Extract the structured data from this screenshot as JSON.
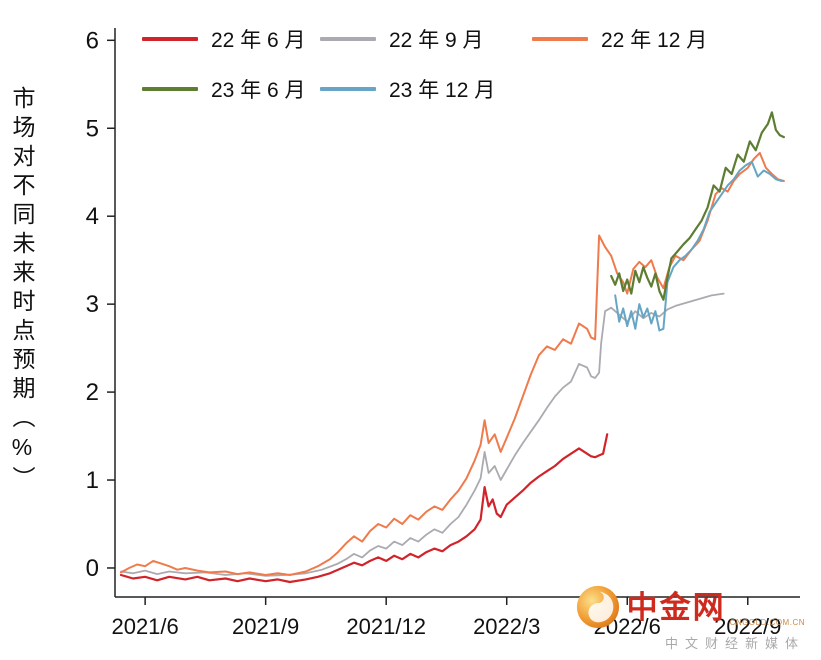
{
  "page": {
    "background": "#ffffff"
  },
  "chart_data": {
    "type": "line",
    "title": "",
    "xlabel": "",
    "ylabel": "市场对不同未来时点预期（%）",
    "grid": false,
    "legend_position": "top-left",
    "axis_color": "#222222",
    "tick_label_color": "#111111",
    "ylim": [
      -0.33,
      6.14
    ],
    "xlim": [
      -0.75,
      16.3
    ],
    "yticks": [
      0,
      1,
      2,
      3,
      4,
      5,
      6
    ],
    "xticks": [
      {
        "pos": 0,
        "label": "2021/6"
      },
      {
        "pos": 3,
        "label": "2021/9"
      },
      {
        "pos": 6,
        "label": "2021/12"
      },
      {
        "pos": 9,
        "label": "2022/3"
      },
      {
        "pos": 12,
        "label": "2022/6"
      },
      {
        "pos": 15,
        "label": "2022/9"
      }
    ],
    "x_unit": "months since 2021/6",
    "draw_order": [
      1,
      0,
      2,
      4,
      3
    ],
    "series": [
      {
        "name": "22 年 6 月",
        "color": "#d1232a",
        "width": 2.2,
        "points": [
          [
            -0.6,
            -0.08
          ],
          [
            -0.3,
            -0.12
          ],
          [
            0,
            -0.1
          ],
          [
            0.3,
            -0.14
          ],
          [
            0.6,
            -0.1
          ],
          [
            1,
            -0.13
          ],
          [
            1.3,
            -0.1
          ],
          [
            1.6,
            -0.14
          ],
          [
            2,
            -0.12
          ],
          [
            2.3,
            -0.15
          ],
          [
            2.6,
            -0.12
          ],
          [
            3,
            -0.15
          ],
          [
            3.3,
            -0.13
          ],
          [
            3.6,
            -0.16
          ],
          [
            4,
            -0.13
          ],
          [
            4.3,
            -0.1
          ],
          [
            4.6,
            -0.06
          ],
          [
            4.8,
            -0.02
          ],
          [
            5,
            0.02
          ],
          [
            5.2,
            0.06
          ],
          [
            5.4,
            0.03
          ],
          [
            5.6,
            0.08
          ],
          [
            5.8,
            0.12
          ],
          [
            6,
            0.08
          ],
          [
            6.2,
            0.14
          ],
          [
            6.4,
            0.1
          ],
          [
            6.6,
            0.16
          ],
          [
            6.8,
            0.12
          ],
          [
            7,
            0.18
          ],
          [
            7.2,
            0.22
          ],
          [
            7.4,
            0.19
          ],
          [
            7.6,
            0.26
          ],
          [
            7.8,
            0.3
          ],
          [
            8,
            0.36
          ],
          [
            8.2,
            0.44
          ],
          [
            8.35,
            0.55
          ],
          [
            8.45,
            0.92
          ],
          [
            8.55,
            0.7
          ],
          [
            8.65,
            0.78
          ],
          [
            8.75,
            0.62
          ],
          [
            8.85,
            0.58
          ],
          [
            9,
            0.72
          ],
          [
            9.2,
            0.8
          ],
          [
            9.4,
            0.88
          ],
          [
            9.6,
            0.97
          ],
          [
            9.8,
            1.04
          ],
          [
            10,
            1.1
          ],
          [
            10.2,
            1.16
          ],
          [
            10.4,
            1.24
          ],
          [
            10.6,
            1.3
          ],
          [
            10.8,
            1.36
          ],
          [
            11,
            1.3
          ],
          [
            11.1,
            1.27
          ],
          [
            11.2,
            1.26
          ],
          [
            11.3,
            1.28
          ],
          [
            11.4,
            1.3
          ],
          [
            11.5,
            1.52
          ]
        ]
      },
      {
        "name": "22 年 9 月",
        "color": "#abaab0",
        "width": 1.8,
        "points": [
          [
            -0.6,
            -0.04
          ],
          [
            -0.3,
            -0.06
          ],
          [
            0,
            -0.03
          ],
          [
            0.3,
            -0.07
          ],
          [
            0.6,
            -0.04
          ],
          [
            1,
            -0.06
          ],
          [
            1.5,
            -0.05
          ],
          [
            2,
            -0.08
          ],
          [
            2.5,
            -0.06
          ],
          [
            3,
            -0.09
          ],
          [
            3.5,
            -0.08
          ],
          [
            4,
            -0.06
          ],
          [
            4.4,
            -0.02
          ],
          [
            4.8,
            0.05
          ],
          [
            5,
            0.1
          ],
          [
            5.2,
            0.16
          ],
          [
            5.4,
            0.12
          ],
          [
            5.6,
            0.2
          ],
          [
            5.8,
            0.25
          ],
          [
            6,
            0.22
          ],
          [
            6.2,
            0.3
          ],
          [
            6.4,
            0.26
          ],
          [
            6.6,
            0.34
          ],
          [
            6.8,
            0.3
          ],
          [
            7,
            0.38
          ],
          [
            7.2,
            0.44
          ],
          [
            7.4,
            0.4
          ],
          [
            7.6,
            0.5
          ],
          [
            7.8,
            0.58
          ],
          [
            8,
            0.72
          ],
          [
            8.2,
            0.88
          ],
          [
            8.35,
            1.02
          ],
          [
            8.45,
            1.32
          ],
          [
            8.55,
            1.08
          ],
          [
            8.7,
            1.16
          ],
          [
            8.85,
            1.0
          ],
          [
            9,
            1.12
          ],
          [
            9.2,
            1.28
          ],
          [
            9.4,
            1.42
          ],
          [
            9.6,
            1.55
          ],
          [
            9.8,
            1.68
          ],
          [
            10,
            1.82
          ],
          [
            10.2,
            1.95
          ],
          [
            10.4,
            2.05
          ],
          [
            10.6,
            2.12
          ],
          [
            10.8,
            2.32
          ],
          [
            11,
            2.28
          ],
          [
            11.1,
            2.18
          ],
          [
            11.2,
            2.16
          ],
          [
            11.3,
            2.22
          ],
          [
            11.35,
            2.55
          ],
          [
            11.45,
            2.92
          ],
          [
            11.6,
            2.96
          ],
          [
            11.8,
            2.88
          ],
          [
            12,
            2.8
          ],
          [
            12.2,
            2.92
          ],
          [
            12.4,
            2.84
          ],
          [
            12.6,
            2.9
          ],
          [
            12.8,
            2.86
          ],
          [
            13,
            2.94
          ],
          [
            13.2,
            2.98
          ],
          [
            13.5,
            3.02
          ],
          [
            13.8,
            3.06
          ],
          [
            14.1,
            3.1
          ],
          [
            14.4,
            3.12
          ]
        ]
      },
      {
        "name": "22 年 12 月",
        "color": "#ef7b4d",
        "width": 2,
        "points": [
          [
            -0.6,
            -0.05
          ],
          [
            -0.4,
            0.0
          ],
          [
            -0.2,
            0.04
          ],
          [
            0,
            0.02
          ],
          [
            0.2,
            0.08
          ],
          [
            0.4,
            0.05
          ],
          [
            0.6,
            0.02
          ],
          [
            0.8,
            -0.02
          ],
          [
            1,
            0.0
          ],
          [
            1.3,
            -0.03
          ],
          [
            1.6,
            -0.05
          ],
          [
            2,
            -0.04
          ],
          [
            2.3,
            -0.07
          ],
          [
            2.6,
            -0.05
          ],
          [
            3,
            -0.08
          ],
          [
            3.3,
            -0.06
          ],
          [
            3.6,
            -0.08
          ],
          [
            4,
            -0.04
          ],
          [
            4.3,
            0.02
          ],
          [
            4.6,
            0.1
          ],
          [
            4.8,
            0.18
          ],
          [
            5,
            0.28
          ],
          [
            5.2,
            0.36
          ],
          [
            5.4,
            0.3
          ],
          [
            5.6,
            0.42
          ],
          [
            5.8,
            0.5
          ],
          [
            6,
            0.46
          ],
          [
            6.2,
            0.56
          ],
          [
            6.4,
            0.5
          ],
          [
            6.6,
            0.6
          ],
          [
            6.8,
            0.55
          ],
          [
            7,
            0.64
          ],
          [
            7.2,
            0.7
          ],
          [
            7.4,
            0.66
          ],
          [
            7.6,
            0.78
          ],
          [
            7.8,
            0.88
          ],
          [
            8,
            1.02
          ],
          [
            8.2,
            1.22
          ],
          [
            8.35,
            1.4
          ],
          [
            8.45,
            1.68
          ],
          [
            8.55,
            1.42
          ],
          [
            8.7,
            1.52
          ],
          [
            8.85,
            1.32
          ],
          [
            9,
            1.48
          ],
          [
            9.2,
            1.7
          ],
          [
            9.4,
            1.95
          ],
          [
            9.6,
            2.2
          ],
          [
            9.8,
            2.42
          ],
          [
            10,
            2.52
          ],
          [
            10.2,
            2.48
          ],
          [
            10.4,
            2.6
          ],
          [
            10.6,
            2.55
          ],
          [
            10.8,
            2.78
          ],
          [
            11,
            2.72
          ],
          [
            11.1,
            2.62
          ],
          [
            11.2,
            2.6
          ],
          [
            11.3,
            3.78
          ],
          [
            11.45,
            3.65
          ],
          [
            11.6,
            3.55
          ],
          [
            11.75,
            3.35
          ],
          [
            11.9,
            3.25
          ],
          [
            12,
            3.12
          ],
          [
            12.15,
            3.4
          ],
          [
            12.3,
            3.48
          ],
          [
            12.45,
            3.42
          ],
          [
            12.6,
            3.5
          ],
          [
            12.75,
            3.3
          ],
          [
            12.9,
            3.18
          ],
          [
            13.05,
            3.42
          ],
          [
            13.2,
            3.55
          ],
          [
            13.4,
            3.5
          ],
          [
            13.6,
            3.62
          ],
          [
            13.8,
            3.72
          ],
          [
            14,
            3.95
          ],
          [
            14.2,
            4.25
          ],
          [
            14.35,
            4.32
          ],
          [
            14.5,
            4.28
          ],
          [
            14.65,
            4.4
          ],
          [
            14.8,
            4.48
          ],
          [
            15,
            4.55
          ],
          [
            15.15,
            4.65
          ],
          [
            15.3,
            4.72
          ],
          [
            15.45,
            4.55
          ],
          [
            15.6,
            4.48
          ],
          [
            15.75,
            4.42
          ],
          [
            15.9,
            4.4
          ]
        ]
      },
      {
        "name": "23 年 6 月",
        "color": "#5d7d33",
        "width": 2.2,
        "points": [
          [
            11.6,
            3.32
          ],
          [
            11.7,
            3.22
          ],
          [
            11.8,
            3.35
          ],
          [
            11.9,
            3.15
          ],
          [
            12,
            3.28
          ],
          [
            12.1,
            3.12
          ],
          [
            12.2,
            3.38
          ],
          [
            12.3,
            3.25
          ],
          [
            12.4,
            3.42
          ],
          [
            12.5,
            3.3
          ],
          [
            12.6,
            3.2
          ],
          [
            12.7,
            3.35
          ],
          [
            12.8,
            3.15
          ],
          [
            12.9,
            3.05
          ],
          [
            13,
            3.3
          ],
          [
            13.1,
            3.52
          ],
          [
            13.25,
            3.6
          ],
          [
            13.4,
            3.68
          ],
          [
            13.55,
            3.75
          ],
          [
            13.7,
            3.85
          ],
          [
            13.85,
            3.95
          ],
          [
            14,
            4.1
          ],
          [
            14.15,
            4.35
          ],
          [
            14.3,
            4.28
          ],
          [
            14.45,
            4.55
          ],
          [
            14.6,
            4.48
          ],
          [
            14.75,
            4.7
          ],
          [
            14.9,
            4.62
          ],
          [
            15.05,
            4.85
          ],
          [
            15.2,
            4.75
          ],
          [
            15.35,
            4.95
          ],
          [
            15.5,
            5.05
          ],
          [
            15.6,
            5.18
          ],
          [
            15.7,
            4.98
          ],
          [
            15.8,
            4.92
          ],
          [
            15.9,
            4.9
          ]
        ]
      },
      {
        "name": "23 年 12 月",
        "color": "#66a5c4",
        "width": 2,
        "points": [
          [
            11.7,
            3.1
          ],
          [
            11.8,
            2.8
          ],
          [
            11.9,
            2.95
          ],
          [
            12,
            2.75
          ],
          [
            12.1,
            2.92
          ],
          [
            12.2,
            2.72
          ],
          [
            12.3,
            3.0
          ],
          [
            12.4,
            2.85
          ],
          [
            12.5,
            2.95
          ],
          [
            12.6,
            2.78
          ],
          [
            12.7,
            2.92
          ],
          [
            12.8,
            2.7
          ],
          [
            12.9,
            2.72
          ],
          [
            13,
            3.25
          ],
          [
            13.15,
            3.42
          ],
          [
            13.3,
            3.5
          ],
          [
            13.45,
            3.55
          ],
          [
            13.6,
            3.62
          ],
          [
            13.75,
            3.72
          ],
          [
            13.9,
            3.85
          ],
          [
            14.05,
            4.05
          ],
          [
            14.2,
            4.15
          ],
          [
            14.35,
            4.25
          ],
          [
            14.5,
            4.35
          ],
          [
            14.65,
            4.42
          ],
          [
            14.8,
            4.52
          ],
          [
            14.95,
            4.58
          ],
          [
            15.1,
            4.62
          ],
          [
            15.25,
            4.45
          ],
          [
            15.4,
            4.52
          ],
          [
            15.55,
            4.48
          ],
          [
            15.7,
            4.42
          ],
          [
            15.85,
            4.4
          ]
        ]
      }
    ]
  },
  "watermark": {
    "name": "中金网",
    "domain": "CNGOLD.COM.CN",
    "tagline": "中文财经新媒体"
  }
}
